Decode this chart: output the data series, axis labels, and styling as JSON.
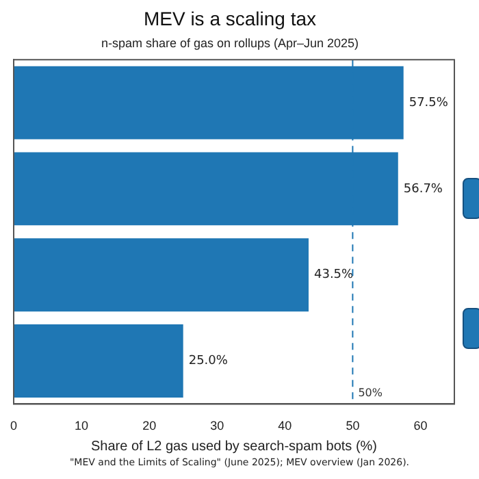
{
  "chart_data": {
    "type": "bar",
    "orientation": "horizontal",
    "title": "MEV is a scaling tax",
    "subtitle": "n-spam share of gas on rollups (Apr–Jun 2025)",
    "xlabel": "Share of L2 gas used by search-spam bots (%)",
    "categories": [
      null,
      null,
      null,
      null
    ],
    "values": [
      57.5,
      56.7,
      43.5,
      25.0
    ],
    "value_labels": [
      "57.5%",
      "56.7%",
      "43.5%",
      "25.0%"
    ],
    "color": "#1f77b4",
    "xlim": [
      0,
      65
    ],
    "xticks": [
      0,
      10,
      20,
      30,
      40,
      50,
      60
    ],
    "ref_lines": [
      {
        "axis": "x",
        "value": 50,
        "label": "50%",
        "color": "#1f77b4",
        "line_style": "dashed"
      }
    ],
    "annotations": [
      "\"MEV and the Limits of Scaling\" (June 2025); MEV overview (Jan 2026)."
    ],
    "grid": false,
    "legend": false
  }
}
